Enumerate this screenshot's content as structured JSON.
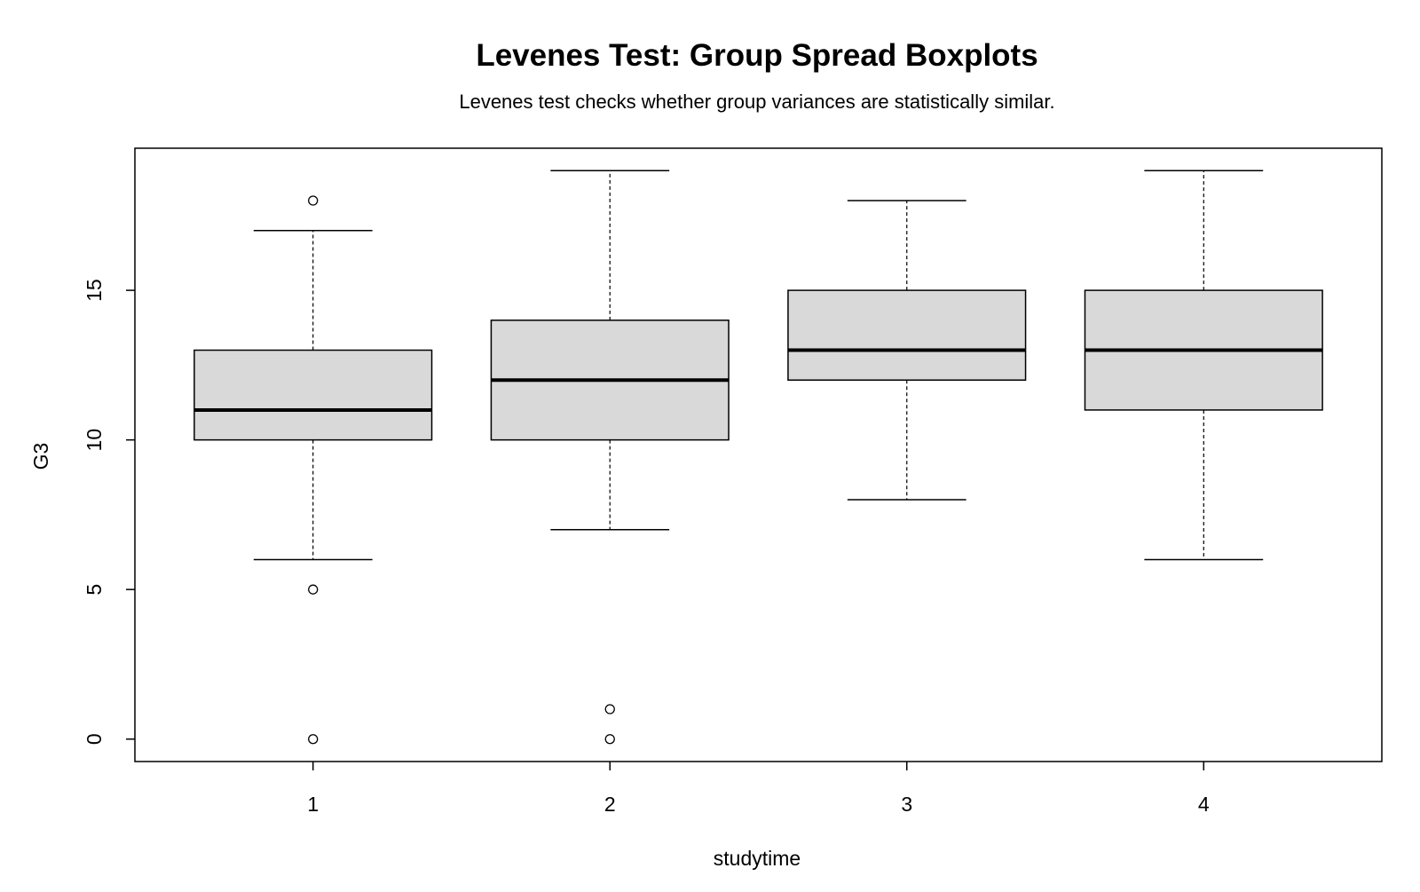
{
  "chart_data": {
    "type": "box",
    "title": "Levenes Test: Group Spread Boxplots",
    "subtitle": "Levenes test checks whether group variances are statistically similar.",
    "xlabel": "studytime",
    "ylabel": "G3",
    "categories": [
      "1",
      "2",
      "3",
      "4"
    ],
    "y_ticks": [
      0,
      5,
      10,
      15
    ],
    "ylim": [
      -0.75,
      19.75
    ],
    "boxes": [
      {
        "group": "1",
        "whisker_low": 6,
        "q1": 10,
        "median": 11,
        "q3": 13,
        "whisker_high": 17,
        "outliers": [
          18,
          5,
          0
        ]
      },
      {
        "group": "2",
        "whisker_low": 7,
        "q1": 10,
        "median": 12,
        "q3": 14,
        "whisker_high": 19,
        "outliers": [
          1,
          0
        ]
      },
      {
        "group": "3",
        "whisker_low": 8,
        "q1": 12,
        "median": 13,
        "q3": 15,
        "whisker_high": 18,
        "outliers": []
      },
      {
        "group": "4",
        "whisker_low": 6,
        "q1": 11,
        "median": 13,
        "q3": 15,
        "whisker_high": 19,
        "outliers": []
      }
    ],
    "box_fill": "#d9d9d9",
    "grid": false,
    "legend": "none"
  }
}
